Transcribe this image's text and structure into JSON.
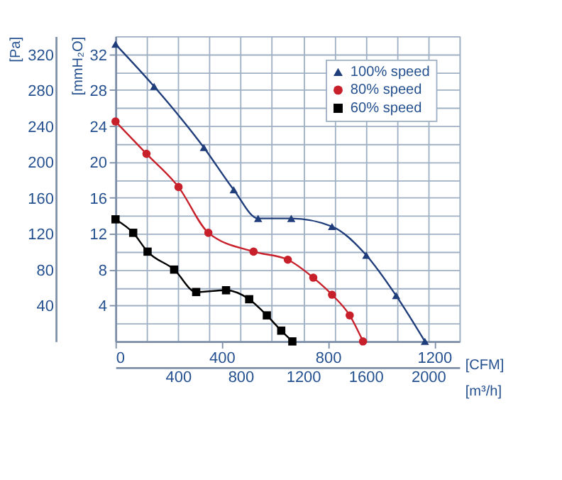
{
  "chart_data": {
    "type": "line",
    "xlabel": "[m³/h]",
    "x2label": "[CFM]",
    "ylabel": "[Pa]",
    "y2label": "[mmH₂O]",
    "xlim": [
      0,
      2200
    ],
    "xticks": [
      {
        "value": 0,
        "label": null
      },
      {
        "value": 200,
        "label": null
      },
      400,
      {
        "value": 600,
        "label": null
      },
      800,
      {
        "value": 1000,
        "label": null
      },
      1200,
      {
        "value": 1400,
        "label": null
      },
      1600,
      {
        "value": 1800,
        "label": null
      },
      2000,
      {
        "value": 2200,
        "label": null
      }
    ],
    "x2lim": [
      0,
      1295
    ],
    "x2ticks": [
      0,
      400,
      800,
      1200
    ],
    "ylim": [
      0,
      340
    ],
    "yticks": [
      {
        "value": 0,
        "label": null
      },
      {
        "value": 20,
        "label": null
      },
      40,
      {
        "value": 60,
        "label": null
      },
      80,
      {
        "value": 100,
        "label": null
      },
      120,
      {
        "value": 140,
        "label": null
      },
      160,
      {
        "value": 180,
        "label": null
      },
      200,
      {
        "value": 220,
        "label": null
      },
      240,
      {
        "value": 260,
        "label": null
      },
      280,
      {
        "value": 300,
        "label": null
      },
      320,
      {
        "value": 340,
        "label": null
      }
    ],
    "y2lim": [
      0,
      34
    ],
    "y2ticks": [
      4,
      8,
      12,
      16,
      20,
      24,
      28,
      32
    ],
    "grid": true,
    "legend": "top right",
    "line_style": "solid",
    "series": [
      {
        "name": "100% speed",
        "color": "#1f3d7a",
        "marker": "triangle",
        "x": [
          0,
          247,
          565,
          756,
          912,
          1124,
          1385,
          1604,
          1795,
          1979
        ],
        "values": [
          331,
          284,
          216,
          169,
          137,
          137,
          128,
          96,
          51,
          0
        ]
      },
      {
        "name": "80% speed",
        "color": "#c8202a",
        "marker": "circle",
        "x": [
          0,
          198,
          403,
          594,
          883,
          1102,
          1265,
          1385,
          1498,
          1583
        ],
        "values": [
          245,
          209,
          172,
          121,
          100,
          91,
          71,
          52,
          29,
          0
        ]
      },
      {
        "name": "60% speed",
        "color": "#000000",
        "marker": "square",
        "x": [
          0,
          113,
          205,
          375,
          516,
          707,
          855,
          968,
          1060,
          1131
        ],
        "values": [
          136,
          121,
          100,
          80,
          55,
          57,
          47,
          29,
          12,
          0
        ]
      }
    ]
  }
}
